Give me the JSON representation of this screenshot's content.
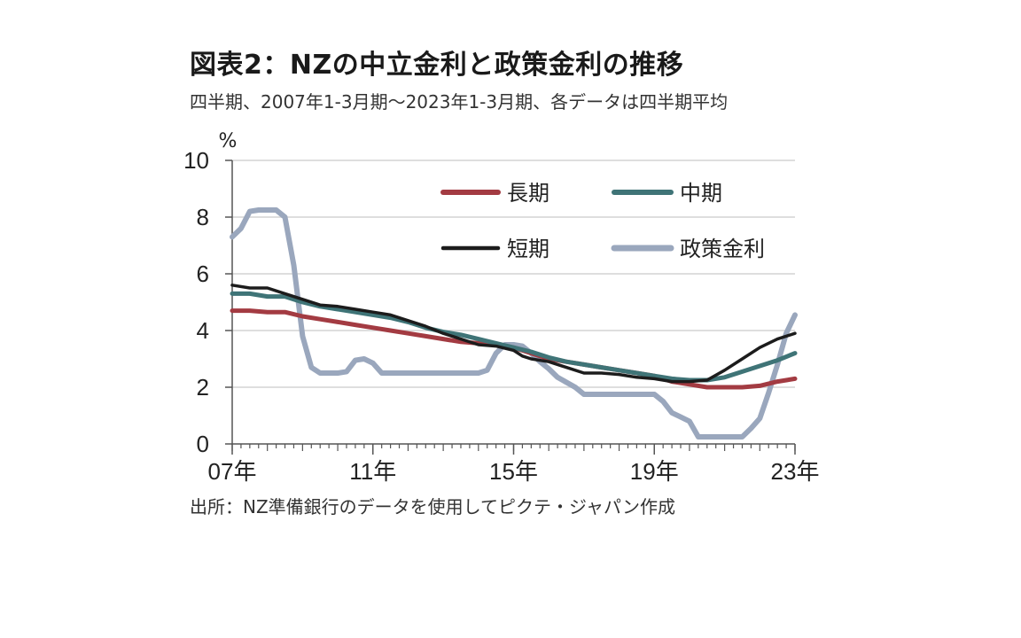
{
  "title": "図表2：NZの中立金利と政策金利の推移",
  "subtitle": "四半期、2007年1-3月期～2023年1-3月期、各データは四半期平均",
  "source": "出所：NZ準備銀行のデータを使用してピクテ・ジャパン作成",
  "colors": {
    "長期": "#a33b42",
    "中期": "#3f7477",
    "短期": "#1c1c1c",
    "政策金利": "#9aa7bd",
    "grid": "#d4d4d4",
    "axis": "#555555"
  },
  "chart_data": {
    "type": "line",
    "ylabel": "%",
    "xlabel": "",
    "ylim": [
      0,
      10
    ],
    "y_ticks": [
      "0",
      "2",
      "4",
      "6",
      "8",
      "10"
    ],
    "x_range": [
      2007.0,
      2023.0
    ],
    "x_ticks": [
      {
        "x": 2007,
        "label": "07年"
      },
      {
        "x": 2011,
        "label": "11年"
      },
      {
        "x": 2015,
        "label": "15年"
      },
      {
        "x": 2019,
        "label": "19年"
      },
      {
        "x": 2023,
        "label": "23年"
      }
    ],
    "grid": true,
    "legend_position": "top-right",
    "series": [
      {
        "name": "長期",
        "points": [
          [
            2007.0,
            4.7
          ],
          [
            2007.5,
            4.7
          ],
          [
            2008.0,
            4.65
          ],
          [
            2008.5,
            4.65
          ],
          [
            2009.0,
            4.5
          ],
          [
            2009.5,
            4.4
          ],
          [
            2010.0,
            4.3
          ],
          [
            2010.5,
            4.2
          ],
          [
            2011.0,
            4.1
          ],
          [
            2011.5,
            4.0
          ],
          [
            2012.0,
            3.9
          ],
          [
            2012.5,
            3.8
          ],
          [
            2013.0,
            3.7
          ],
          [
            2013.5,
            3.6
          ],
          [
            2014.0,
            3.55
          ],
          [
            2014.5,
            3.5
          ],
          [
            2015.0,
            3.4
          ],
          [
            2015.5,
            3.2
          ],
          [
            2016.0,
            3.0
          ],
          [
            2016.5,
            2.9
          ],
          [
            2017.0,
            2.8
          ],
          [
            2017.5,
            2.7
          ],
          [
            2018.0,
            2.6
          ],
          [
            2018.5,
            2.5
          ],
          [
            2019.0,
            2.4
          ],
          [
            2019.5,
            2.2
          ],
          [
            2020.0,
            2.1
          ],
          [
            2020.5,
            2.0
          ],
          [
            2021.0,
            2.0
          ],
          [
            2021.5,
            2.0
          ],
          [
            2022.0,
            2.05
          ],
          [
            2022.5,
            2.2
          ],
          [
            2023.0,
            2.3
          ]
        ]
      },
      {
        "name": "中期",
        "points": [
          [
            2007.0,
            5.3
          ],
          [
            2007.5,
            5.3
          ],
          [
            2008.0,
            5.2
          ],
          [
            2008.5,
            5.2
          ],
          [
            2009.0,
            5.0
          ],
          [
            2009.5,
            4.85
          ],
          [
            2010.0,
            4.75
          ],
          [
            2010.5,
            4.65
          ],
          [
            2011.0,
            4.55
          ],
          [
            2011.5,
            4.45
          ],
          [
            2012.0,
            4.3
          ],
          [
            2012.5,
            4.1
          ],
          [
            2013.0,
            3.95
          ],
          [
            2013.5,
            3.85
          ],
          [
            2014.0,
            3.7
          ],
          [
            2014.5,
            3.55
          ],
          [
            2015.0,
            3.4
          ],
          [
            2015.5,
            3.25
          ],
          [
            2016.0,
            3.05
          ],
          [
            2016.5,
            2.9
          ],
          [
            2017.0,
            2.8
          ],
          [
            2017.5,
            2.7
          ],
          [
            2018.0,
            2.6
          ],
          [
            2018.5,
            2.5
          ],
          [
            2019.0,
            2.4
          ],
          [
            2019.5,
            2.3
          ],
          [
            2020.0,
            2.25
          ],
          [
            2020.5,
            2.25
          ],
          [
            2021.0,
            2.35
          ],
          [
            2021.5,
            2.55
          ],
          [
            2022.0,
            2.75
          ],
          [
            2022.5,
            2.95
          ],
          [
            2023.0,
            3.2
          ]
        ]
      },
      {
        "name": "短期",
        "points": [
          [
            2007.0,
            5.6
          ],
          [
            2007.5,
            5.5
          ],
          [
            2008.0,
            5.5
          ],
          [
            2008.5,
            5.3
          ],
          [
            2009.0,
            5.1
          ],
          [
            2009.5,
            4.9
          ],
          [
            2010.0,
            4.85
          ],
          [
            2010.5,
            4.75
          ],
          [
            2011.0,
            4.65
          ],
          [
            2011.5,
            4.55
          ],
          [
            2012.0,
            4.35
          ],
          [
            2012.5,
            4.15
          ],
          [
            2013.0,
            3.9
          ],
          [
            2013.5,
            3.7
          ],
          [
            2014.0,
            3.5
          ],
          [
            2014.5,
            3.45
          ],
          [
            2015.0,
            3.3
          ],
          [
            2015.25,
            3.1
          ],
          [
            2015.5,
            3.0
          ],
          [
            2016.0,
            2.9
          ],
          [
            2016.5,
            2.7
          ],
          [
            2017.0,
            2.5
          ],
          [
            2017.5,
            2.5
          ],
          [
            2018.0,
            2.45
          ],
          [
            2018.5,
            2.35
          ],
          [
            2019.0,
            2.3
          ],
          [
            2019.5,
            2.2
          ],
          [
            2020.0,
            2.2
          ],
          [
            2020.5,
            2.25
          ],
          [
            2021.0,
            2.6
          ],
          [
            2021.5,
            3.0
          ],
          [
            2022.0,
            3.4
          ],
          [
            2022.5,
            3.7
          ],
          [
            2023.0,
            3.9
          ]
        ]
      },
      {
        "name": "政策金利",
        "points": [
          [
            2007.0,
            7.3
          ],
          [
            2007.25,
            7.6
          ],
          [
            2007.5,
            8.2
          ],
          [
            2007.75,
            8.25
          ],
          [
            2008.0,
            8.25
          ],
          [
            2008.25,
            8.25
          ],
          [
            2008.5,
            8.0
          ],
          [
            2008.75,
            6.3
          ],
          [
            2009.0,
            3.8
          ],
          [
            2009.25,
            2.7
          ],
          [
            2009.5,
            2.5
          ],
          [
            2010.0,
            2.5
          ],
          [
            2010.25,
            2.55
          ],
          [
            2010.5,
            2.95
          ],
          [
            2010.75,
            3.0
          ],
          [
            2011.0,
            2.85
          ],
          [
            2011.25,
            2.5
          ],
          [
            2012.0,
            2.5
          ],
          [
            2013.0,
            2.5
          ],
          [
            2014.0,
            2.5
          ],
          [
            2014.25,
            2.6
          ],
          [
            2014.5,
            3.2
          ],
          [
            2014.75,
            3.5
          ],
          [
            2015.0,
            3.5
          ],
          [
            2015.25,
            3.45
          ],
          [
            2015.5,
            3.2
          ],
          [
            2015.75,
            2.9
          ],
          [
            2016.0,
            2.65
          ],
          [
            2016.25,
            2.35
          ],
          [
            2016.75,
            2.0
          ],
          [
            2017.0,
            1.75
          ],
          [
            2018.0,
            1.75
          ],
          [
            2019.0,
            1.75
          ],
          [
            2019.25,
            1.5
          ],
          [
            2019.5,
            1.1
          ],
          [
            2019.75,
            0.95
          ],
          [
            2020.0,
            0.8
          ],
          [
            2020.25,
            0.25
          ],
          [
            2021.0,
            0.25
          ],
          [
            2021.5,
            0.25
          ],
          [
            2021.75,
            0.55
          ],
          [
            2022.0,
            0.9
          ],
          [
            2022.25,
            1.8
          ],
          [
            2022.5,
            2.8
          ],
          [
            2022.75,
            3.9
          ],
          [
            2023.0,
            4.55
          ]
        ]
      }
    ],
    "legend_items": [
      {
        "name": "長期"
      },
      {
        "name": "中期"
      },
      {
        "name": "短期"
      },
      {
        "name": "政策金利"
      }
    ]
  }
}
